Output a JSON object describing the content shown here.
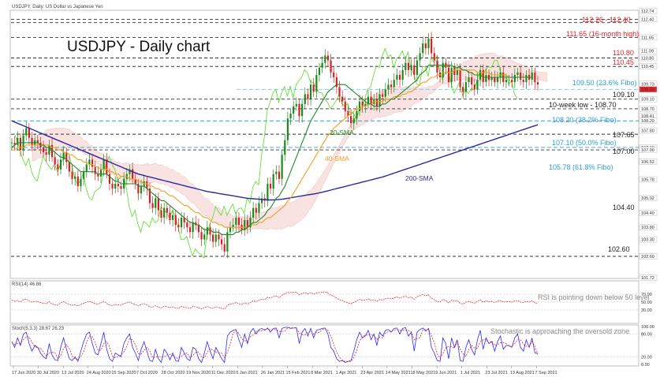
{
  "header": {
    "main_label": "USDJPY, Daily:  US Dollar vs Japanese Yen",
    "rsi_label": "RSI(14) 46.86",
    "stoch_label": "Stoch(5,3,3) 28.67 26.23"
  },
  "chart_title": "USDJPY - Daily chart",
  "colors": {
    "annotation_red": "#e8202a",
    "annotation_teal": "#2e9fd6",
    "sma20": "#1f8a2a",
    "sma40": "#f0a020",
    "sma200": "#2a2aa0",
    "chikou": "#55dd22",
    "candle_up": "#1a8a1a",
    "candle_down": "#d42020",
    "stoch_main": "#2a2aff",
    "stoch_signal": "#e82020",
    "rsi": "#e02020"
  },
  "chart_data": {
    "type": "candlestick",
    "instrument": "USDJPY",
    "timeframe": "Daily",
    "price_range": [
      101.72,
      112.74
    ],
    "right_axis_ticks": [
      "112.74",
      "112.40",
      "111.65",
      "111.09",
      "110.80",
      "110.45",
      "109.73",
      "109.50",
      "109.10",
      "108.70",
      "108.41",
      "108.20",
      "107.80",
      "107.10",
      "107.00",
      "106.52",
      "105.78",
      "105.02",
      "104.40",
      "103.80",
      "103.30",
      "102.60",
      "101.72"
    ],
    "x_axis_labels": [
      "17 Jun 2020",
      "30 Jul 2020",
      "13 Jul 2020",
      "24 Aug 2020",
      "15 Sep 2020",
      "7 Oct 2020",
      "28 Oct 2020",
      "19 Nov 2020",
      "11 Dec 2020",
      "5 Jan 2021",
      "26 Jan 2021",
      "15 Feb 2021",
      "8 Mar 2021",
      "1 Apr 2021",
      "23 Apr 2021",
      "14 May 2021",
      "18 May 2021",
      "9 Jun 2021",
      "1 Jul 2021",
      "23 Jul 2021",
      "13 Aug 2021",
      "7 Sep 2021"
    ],
    "closes": [
      107.3,
      107.2,
      107.5,
      107.0,
      107.6,
      107.9,
      107.5,
      107.2,
      107.4,
      107.3,
      107.1,
      106.9,
      106.8,
      107.2,
      106.7,
      106.4,
      106.2,
      106.6,
      106.9,
      106.5,
      106.1,
      105.8,
      105.9,
      105.5,
      105.8,
      106.1,
      106.4,
      106.6,
      106.3,
      106.0,
      105.9,
      106.2,
      106.6,
      106.0,
      105.6,
      105.4,
      105.6,
      105.5,
      105.4,
      105.8,
      106.0,
      106.2,
      105.8,
      105.6,
      105.2,
      105.5,
      105.7,
      105.4,
      104.8,
      104.6,
      105.0,
      104.5,
      104.2,
      104.6,
      104.4,
      104.1,
      104.3,
      103.9,
      103.8,
      104.2,
      104.0,
      103.8,
      103.6,
      104.0,
      103.9,
      103.6,
      103.3,
      103.5,
      103.8,
      103.5,
      103.2,
      103.5,
      103.3,
      103.1,
      102.8,
      103.6,
      103.8,
      103.9,
      104.2,
      103.9,
      103.7,
      104.1,
      103.8,
      104.2,
      104.6,
      104.4,
      104.8,
      105.0,
      104.9,
      105.6,
      105.4,
      106.0,
      106.1,
      105.8,
      106.8,
      107.4,
      108.3,
      108.5,
      108.8,
      108.9,
      108.4,
      108.9,
      109.3,
      109.1,
      109.7,
      109.4,
      110.1,
      110.4,
      110.6,
      110.9,
      110.7,
      110.2,
      110.0,
      109.6,
      109.2,
      109.0,
      108.6,
      108.4,
      108.1,
      108.3,
      108.6,
      109.0,
      108.8,
      108.9,
      109.2,
      108.9,
      109.1,
      108.8,
      109.3,
      109.2,
      109.5,
      109.7,
      109.6,
      109.9,
      110.1,
      109.9,
      110.3,
      110.6,
      110.3,
      110.5,
      110.1,
      110.7,
      111.0,
      111.4,
      111.2,
      111.6,
      111.0,
      110.7,
      110.2,
      110.0,
      110.6,
      110.4,
      109.8,
      110.4,
      110.1,
      110.3,
      109.6,
      109.4,
      109.8,
      110.0,
      109.7,
      109.5,
      109.9,
      110.3,
      109.8,
      110.1,
      109.9,
      110.0,
      109.8,
      110.0,
      110.2,
      109.8,
      109.9,
      109.9,
      109.8,
      110.1,
      110.2,
      109.9,
      109.8,
      110.1,
      109.9,
      110.2,
      109.8,
      109.7
    ],
    "sma_20": [
      107.1,
      107.2,
      107.3,
      107.3,
      107.3,
      107.3,
      107.3,
      107.3,
      107.3,
      107.3,
      107.2,
      107.2,
      107.1,
      107.1,
      107.0,
      106.9,
      106.8,
      106.7,
      106.7,
      106.6,
      106.5,
      106.4,
      106.3,
      106.2,
      106.1,
      106.1,
      106.1,
      106.1,
      106.1,
      106.1,
      106.0,
      106.0,
      106.0,
      106.0,
      105.9,
      105.8,
      105.7,
      105.7,
      105.6,
      105.6,
      105.6,
      105.6,
      105.6,
      105.6,
      105.5,
      105.5,
      105.5,
      105.4,
      105.3,
      105.2,
      105.1,
      105.0,
      104.9,
      104.9,
      104.8,
      104.7,
      104.6,
      104.5,
      104.4,
      104.3,
      104.2,
      104.1,
      104.0,
      104.0,
      103.9,
      103.9,
      103.8,
      103.7,
      103.7,
      103.7,
      103.6,
      103.6,
      103.6,
      103.5,
      103.5,
      103.5,
      103.5,
      103.5,
      103.6,
      103.6,
      103.7,
      103.7,
      103.8,
      103.9,
      104.0,
      104.0,
      104.1,
      104.2,
      104.3,
      104.5,
      104.6,
      104.8,
      105.0,
      105.1,
      105.3,
      105.5,
      105.8,
      106.1,
      106.4,
      106.7,
      107.0,
      107.3,
      107.6,
      107.9,
      108.2,
      108.4,
      108.6,
      108.8,
      109.0,
      109.2,
      109.4,
      109.5,
      109.6,
      109.7,
      109.7,
      109.7,
      109.7,
      109.6,
      109.5,
      109.4,
      109.3,
      109.2,
      109.1,
      109.0,
      108.9,
      108.9,
      108.8,
      108.8,
      108.8,
      108.9,
      108.9,
      109.0,
      109.1,
      109.1,
      109.2,
      109.3,
      109.4,
      109.5,
      109.6,
      109.7,
      109.8,
      109.9,
      110.1,
      110.2,
      110.3,
      110.5,
      110.5,
      110.5,
      110.5,
      110.5,
      110.5,
      110.5,
      110.5,
      110.5,
      110.4,
      110.4,
      110.4,
      110.3,
      110.3,
      110.2,
      110.2,
      110.1,
      110.1,
      110.1,
      110.0,
      110.0,
      110.0,
      110.0,
      110.0,
      110.0,
      110.0,
      110.0,
      110.0,
      110.0,
      110.0,
      110.0,
      110.0,
      110.0,
      110.0,
      110.0,
      110.0,
      110.0
    ],
    "sma_40": [
      107.0,
      107.0,
      107.1,
      107.1,
      107.1,
      107.2,
      107.2,
      107.2,
      107.2,
      107.2,
      107.2,
      107.2,
      107.2,
      107.2,
      107.1,
      107.1,
      107.0,
      107.0,
      106.9,
      106.9,
      106.8,
      106.8,
      106.7,
      106.6,
      106.6,
      106.5,
      106.5,
      106.4,
      106.4,
      106.3,
      106.3,
      106.2,
      106.2,
      106.2,
      106.1,
      106.1,
      106.0,
      106.0,
      105.9,
      105.9,
      105.9,
      105.8,
      105.8,
      105.8,
      105.7,
      105.7,
      105.6,
      105.6,
      105.5,
      105.5,
      105.4,
      105.4,
      105.3,
      105.3,
      105.2,
      105.1,
      105.1,
      105.0,
      104.9,
      104.8,
      104.7,
      104.7,
      104.6,
      104.5,
      104.4,
      104.4,
      104.3,
      104.2,
      104.2,
      104.1,
      104.0,
      104.0,
      103.9,
      103.9,
      103.8,
      103.8,
      103.8,
      103.8,
      103.8,
      103.8,
      103.8,
      103.8,
      103.8,
      103.9,
      103.9,
      103.9,
      104.0,
      104.0,
      104.1,
      104.2,
      104.2,
      104.3,
      104.4,
      104.5,
      104.6,
      104.7,
      104.9,
      105.0,
      105.2,
      105.4,
      105.6,
      105.8,
      106.0,
      106.2,
      106.4,
      106.6,
      106.8,
      107.0,
      107.2,
      107.4,
      107.6,
      107.7,
      107.9,
      108.0,
      108.1,
      108.2,
      108.3,
      108.4,
      108.5,
      108.6,
      108.7,
      108.7,
      108.8,
      108.8,
      108.9,
      108.9,
      109.0,
      109.0,
      109.0,
      109.0,
      109.1,
      109.1,
      109.1,
      109.2,
      109.2,
      109.2,
      109.3,
      109.3,
      109.4,
      109.4,
      109.5,
      109.6,
      109.7,
      109.8,
      109.8,
      109.9,
      110.0,
      110.0,
      110.1,
      110.1,
      110.2,
      110.2,
      110.2,
      110.2,
      110.3,
      110.3,
      110.3,
      110.3,
      110.3,
      110.3,
      110.3,
      110.3,
      110.2,
      110.2,
      110.2,
      110.2,
      110.2,
      110.1,
      110.1,
      110.1,
      110.1,
      110.1,
      110.1,
      110.0,
      110.0,
      110.0,
      110.0,
      110.0,
      110.0,
      110.0
    ],
    "sma_200": [
      108.2,
      108.15,
      108.1,
      108.05,
      108.0,
      107.95,
      107.9,
      107.85,
      107.8,
      107.75,
      107.7,
      107.65,
      107.6,
      107.55,
      107.5,
      107.45,
      107.4,
      107.35,
      107.3,
      107.25,
      107.2,
      107.15,
      107.1,
      107.05,
      107.0,
      106.95,
      106.9,
      106.85,
      106.8,
      106.75,
      106.7,
      106.65,
      106.6,
      106.55,
      106.5,
      106.45,
      106.4,
      106.35,
      106.3,
      106.25,
      106.2,
      106.15,
      106.1,
      106.05,
      106.0,
      105.97,
      105.94,
      105.91,
      105.88,
      105.85,
      105.82,
      105.79,
      105.76,
      105.73,
      105.7,
      105.67,
      105.64,
      105.61,
      105.58,
      105.55,
      105.52,
      105.49,
      105.46,
      105.43,
      105.4,
      105.37,
      105.34,
      105.31,
      105.28,
      105.26,
      105.24,
      105.22,
      105.2,
      105.18,
      105.16,
      105.14,
      105.12,
      105.1,
      105.08,
      105.06,
      105.04,
      105.02,
      105.0,
      104.99,
      104.98,
      104.97,
      104.96,
      104.95,
      104.94,
      104.93,
      104.93,
      104.93,
      104.94,
      104.95,
      104.96,
      104.98,
      105.0,
      105.02,
      105.04,
      105.06,
      105.08,
      105.1,
      105.12,
      105.14,
      105.16,
      105.18,
      105.2,
      105.22,
      105.25,
      105.28,
      105.31,
      105.34,
      105.37,
      105.4,
      105.43,
      105.46,
      105.49,
      105.52,
      105.55,
      105.58,
      105.61,
      105.64,
      105.67,
      105.7,
      105.73,
      105.76,
      105.79,
      105.82,
      105.85,
      105.88,
      105.92,
      105.96,
      106.0,
      106.04,
      106.08,
      106.12,
      106.16,
      106.2,
      106.24,
      106.28,
      106.32,
      106.36,
      106.4,
      106.44,
      106.48,
      106.52,
      106.56,
      106.6,
      106.64,
      106.68,
      106.72,
      106.76,
      106.8,
      106.84,
      106.88,
      106.92,
      106.96,
      107.0,
      107.04,
      107.08,
      107.12,
      107.16,
      107.2,
      107.24,
      107.28,
      107.32,
      107.36,
      107.4,
      107.44,
      107.48,
      107.52,
      107.56,
      107.6,
      107.64,
      107.68,
      107.72,
      107.76,
      107.8,
      107.84,
      107.88,
      107.92,
      107.96,
      108.0,
      108.04
    ],
    "annotations": [
      {
        "text": "112.26 - 112.40",
        "color": "red"
      },
      {
        "text": "111.65 (16-month high)",
        "color": "red"
      },
      {
        "text": "110.80",
        "color": "red"
      },
      {
        "text": "110.45",
        "color": "red"
      },
      {
        "text": "109.50 (23.6% Fibo)",
        "color": "teal"
      },
      {
        "text": "109.10",
        "color": "dark"
      },
      {
        "text": "10-week low - 108.70",
        "color": "dark"
      },
      {
        "text": "108.20 (38.2% Fibo)",
        "color": "teal"
      },
      {
        "text": "107.65",
        "color": "dark"
      },
      {
        "text": "107.10 (50.0% Fibo)",
        "color": "teal"
      },
      {
        "text": "107.00",
        "color": "dark"
      },
      {
        "text": "105.78 (61.8% Fibo)",
        "color": "teal"
      },
      {
        "text": "104.40",
        "color": "dark"
      },
      {
        "text": "102.60",
        "color": "dark"
      }
    ],
    "ma_labels": [
      "20-SMA",
      "40-SMA",
      "200-SMA"
    ],
    "rsi": {
      "label": "RSI(14) 46.86",
      "ticks": [
        "70.00",
        "50.00",
        "30.00"
      ],
      "note": "RSI is pointing down below 50 level",
      "values": [
        55,
        52,
        54,
        50,
        56,
        58,
        53,
        50,
        52,
        51,
        49,
        47,
        46,
        51,
        45,
        43,
        42,
        48,
        51,
        47,
        44,
        42,
        43,
        40,
        44,
        47,
        50,
        52,
        49,
        46,
        45,
        48,
        52,
        46,
        43,
        41,
        44,
        43,
        42,
        46,
        48,
        50,
        46,
        44,
        40,
        44,
        46,
        43,
        38,
        37,
        41,
        37,
        35,
        40,
        38,
        36,
        38,
        35,
        34,
        39,
        37,
        35,
        34,
        39,
        38,
        35,
        33,
        36,
        39,
        36,
        34,
        38,
        36,
        34,
        32,
        42,
        45,
        46,
        49,
        46,
        44,
        48,
        45,
        49,
        53,
        51,
        55,
        57,
        56,
        62,
        60,
        64,
        65,
        61,
        68,
        71,
        74,
        74,
        75,
        75,
        68,
        72,
        74,
        71,
        74,
        70,
        73,
        74,
        75,
        76,
        73,
        67,
        65,
        60,
        56,
        54,
        50,
        48,
        46,
        49,
        53,
        57,
        54,
        55,
        58,
        54,
        56,
        52,
        57,
        55,
        58,
        60,
        58,
        61,
        63,
        60,
        63,
        65,
        61,
        63,
        57,
        64,
        66,
        69,
        66,
        68,
        60,
        56,
        51,
        50,
        57,
        54,
        48,
        55,
        52,
        54,
        47,
        45,
        50,
        52,
        49,
        47,
        52,
        56,
        50,
        53,
        51,
        52,
        49,
        52,
        54,
        50,
        51,
        51,
        50,
        53,
        54,
        50,
        49,
        52,
        50,
        53,
        48,
        46.86
      ]
    },
    "stochastic": {
      "label": "Stoch(5,3,3) 28.67 26.23",
      "ticks": [
        "100.00",
        "80.00",
        "20.00",
        "0.00"
      ],
      "note": "Stochastic is approaching the oversold zone",
      "k": [
        60,
        45,
        70,
        50,
        80,
        85,
        55,
        35,
        50,
        45,
        30,
        20,
        15,
        55,
        25,
        12,
        10,
        45,
        70,
        40,
        15,
        10,
        20,
        8,
        35,
        60,
        80,
        85,
        55,
        30,
        25,
        55,
        85,
        40,
        15,
        8,
        30,
        25,
        20,
        55,
        70,
        80,
        45,
        30,
        10,
        40,
        60,
        35,
        10,
        8,
        40,
        15,
        5,
        40,
        30,
        12,
        30,
        10,
        8,
        45,
        30,
        15,
        10,
        45,
        40,
        15,
        5,
        30,
        60,
        35,
        15,
        45,
        30,
        15,
        5,
        75,
        85,
        90,
        92,
        65,
        45,
        80,
        55,
        85,
        95,
        80,
        92,
        95,
        90,
        96,
        85,
        95,
        96,
        70,
        95,
        98,
        98,
        95,
        96,
        97,
        55,
        85,
        95,
        75,
        95,
        70,
        90,
        92,
        95,
        96,
        80,
        45,
        35,
        15,
        8,
        10,
        5,
        8,
        10,
        35,
        65,
        85,
        70,
        75,
        90,
        65,
        80,
        50,
        85,
        75,
        90,
        92,
        85,
        95,
        96,
        80,
        95,
        97,
        75,
        85,
        35,
        85,
        92,
        96,
        88,
        95,
        45,
        30,
        10,
        8,
        70,
        55,
        15,
        70,
        45,
        65,
        10,
        8,
        45,
        65,
        40,
        25,
        65,
        90,
        40,
        70,
        55,
        60,
        35,
        60,
        75,
        40,
        50,
        50,
        45,
        70,
        80,
        45,
        35,
        65,
        45,
        70,
        30,
        28.67
      ],
      "d": [
        58,
        52,
        55,
        55,
        65,
        72,
        73,
        58,
        47,
        43,
        42,
        32,
        22,
        30,
        32,
        31,
        16,
        22,
        42,
        52,
        42,
        22,
        15,
        13,
        21,
        34,
        58,
        75,
        73,
        57,
        37,
        37,
        55,
        60,
        47,
        21,
        18,
        21,
        25,
        33,
        48,
        68,
        65,
        52,
        28,
        27,
        37,
        45,
        35,
        18,
        19,
        21,
        20,
        20,
        25,
        27,
        24,
        17,
        16,
        21,
        28,
        30,
        18,
        23,
        32,
        33,
        20,
        17,
        32,
        42,
        37,
        32,
        30,
        30,
        17,
        32,
        55,
        83,
        89,
        82,
        67,
        63,
        60,
        73,
        78,
        87,
        89,
        89,
        92,
        94,
        90,
        92,
        92,
        87,
        87,
        88,
        97,
        97,
        96,
        96,
        83,
        79,
        78,
        85,
        88,
        80,
        85,
        84,
        92,
        94,
        90,
        74,
        53,
        32,
        19,
        11,
        8,
        8,
        8,
        18,
        37,
        62,
        73,
        77,
        78,
        77,
        78,
        65,
        72,
        70,
        83,
        86,
        89,
        91,
        92,
        90,
        90,
        91,
        89,
        86,
        65,
        68,
        71,
        91,
        92,
        93,
        76,
        57,
        28,
        16,
        29,
        44,
        47,
        47,
        43,
        60,
        40,
        28,
        21,
        39,
        50,
        43,
        43,
        60,
        65,
        67,
        55,
        62,
        50,
        52,
        57,
        58,
        55,
        47,
        48,
        55,
        65,
        65,
        53,
        48,
        48,
        60,
        48,
        26.23
      ]
    }
  }
}
